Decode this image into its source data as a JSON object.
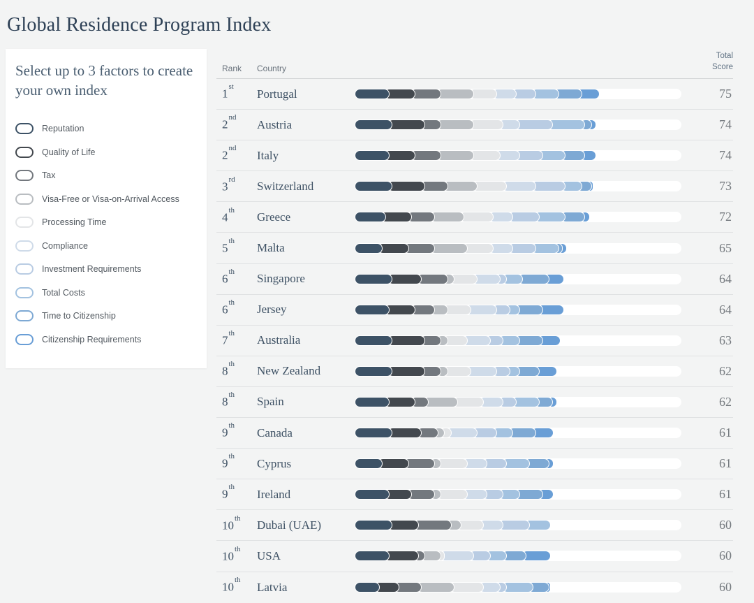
{
  "page": {
    "title": "Global Residence Program Index",
    "background_color": "#f3f4f4",
    "accent_color": "#2e4156"
  },
  "sidebar": {
    "heading": "Select up to 3 factors to create your own index",
    "factors": [
      {
        "label": "Reputation",
        "color": "#3d5266"
      },
      {
        "label": "Quality of Life",
        "color": "#43484e"
      },
      {
        "label": "Tax",
        "color": "#73787e"
      },
      {
        "label": "Visa-Free or Visa-on-Arrival Access",
        "color": "#b9bdc1"
      },
      {
        "label": "Processing Time",
        "color": "#e3e5e7"
      },
      {
        "label": "Compliance",
        "color": "#cfdbe9"
      },
      {
        "label": "Investment Requirements",
        "color": "#b9cce3"
      },
      {
        "label": "Total Costs",
        "color": "#a3c2e0"
      },
      {
        "label": "Time to Citizenship",
        "color": "#7ea9d4"
      },
      {
        "label": "Citizenship Requirements",
        "color": "#699ed6"
      }
    ]
  },
  "table": {
    "headers": {
      "rank": "Rank",
      "country": "Country",
      "score_line1": "Total",
      "score_line2": "Score"
    },
    "ranks": [
      {
        "num": "1",
        "suffix": "st"
      },
      {
        "num": "2",
        "suffix": "nd"
      },
      {
        "num": "2",
        "suffix": "nd"
      },
      {
        "num": "3",
        "suffix": "rd"
      },
      {
        "num": "4",
        "suffix": "th"
      },
      {
        "num": "5",
        "suffix": "th"
      },
      {
        "num": "6",
        "suffix": "th"
      },
      {
        "num": "6",
        "suffix": "th"
      },
      {
        "num": "7",
        "suffix": "th"
      },
      {
        "num": "8",
        "suffix": "th"
      },
      {
        "num": "8",
        "suffix": "th"
      },
      {
        "num": "9",
        "suffix": "th"
      },
      {
        "num": "9",
        "suffix": "th"
      },
      {
        "num": "9",
        "suffix": "th"
      },
      {
        "num": "10",
        "suffix": "th"
      },
      {
        "num": "10",
        "suffix": "th"
      },
      {
        "num": "10",
        "suffix": "th"
      }
    ]
  },
  "chart_data": {
    "type": "bar",
    "variant": "horizontal-stacked",
    "title": "Global Residence Program Index",
    "xlim": [
      0,
      100
    ],
    "track_color": "#ffffff",
    "stack_categories": [
      "Reputation",
      "Quality of Life",
      "Tax",
      "Visa-Free or Visa-on-Arrival Access",
      "Processing Time",
      "Compliance",
      "Investment Requirements",
      "Total Costs",
      "Time to Citizenship",
      "Citizenship Requirements"
    ],
    "stack_colors": [
      "#3d5266",
      "#43484e",
      "#73787e",
      "#b9bdc1",
      "#e3e5e7",
      "#cfdbe9",
      "#b9cce3",
      "#a3c2e0",
      "#7ea9d4",
      "#699ed6"
    ],
    "bars": [
      {
        "country": "Portugal",
        "total": 75,
        "values": [
          9,
          8,
          8,
          10,
          7,
          6,
          6,
          7,
          7,
          7
        ]
      },
      {
        "country": "Austria",
        "total": 74,
        "values": [
          10,
          10,
          5,
          10,
          9,
          5,
          10,
          10,
          2,
          3
        ]
      },
      {
        "country": "Italy",
        "total": 74,
        "values": [
          9,
          8,
          8,
          10,
          8,
          6,
          7,
          7,
          6,
          5
        ]
      },
      {
        "country": "Switzerland",
        "total": 73,
        "values": [
          10,
          10,
          7,
          9,
          9,
          9,
          9,
          5,
          3,
          2
        ]
      },
      {
        "country": "Greece",
        "total": 72,
        "values": [
          8,
          8,
          7,
          9,
          9,
          6,
          8,
          8,
          6,
          3
        ]
      },
      {
        "country": "Malta",
        "total": 65,
        "values": [
          7,
          8,
          8,
          10,
          8,
          6,
          7,
          7,
          1,
          3
        ]
      },
      {
        "country": "Singapore",
        "total": 64,
        "values": [
          10,
          9,
          8,
          2,
          7,
          7,
          2,
          5,
          8,
          6
        ]
      },
      {
        "country": "Jersey",
        "total": 64,
        "values": [
          9,
          8,
          6,
          4,
          7,
          8,
          4,
          3,
          7,
          8
        ]
      },
      {
        "country": "Australia",
        "total": 63,
        "values": [
          10,
          10,
          5,
          2,
          6,
          7,
          4,
          5,
          7,
          7
        ]
      },
      {
        "country": "New Zealand",
        "total": 62,
        "values": [
          10,
          10,
          5,
          2,
          7,
          8,
          4,
          3,
          6,
          7
        ]
      },
      {
        "country": "Spain",
        "total": 62,
        "values": [
          9,
          8,
          4,
          9,
          8,
          6,
          4,
          7,
          4,
          3
        ]
      },
      {
        "country": "Canada",
        "total": 61,
        "values": [
          10,
          9,
          5,
          2,
          2,
          8,
          6,
          5,
          7,
          7
        ]
      },
      {
        "country": "Cyprus",
        "total": 61,
        "values": [
          7,
          8,
          8,
          2,
          8,
          6,
          6,
          7,
          6,
          3
        ]
      },
      {
        "country": "Ireland",
        "total": 61,
        "values": [
          9,
          7,
          7,
          2,
          8,
          6,
          5,
          5,
          7,
          5
        ]
      },
      {
        "country": "Dubai (UAE)",
        "total": 60,
        "values": [
          10,
          8,
          10,
          3,
          7,
          6,
          8,
          8,
          0,
          0
        ]
      },
      {
        "country": "USA",
        "total": 60,
        "values": [
          9,
          9,
          2,
          5,
          1,
          9,
          5,
          5,
          6,
          9
        ]
      },
      {
        "country": "Latvia",
        "total": 60,
        "values": [
          6,
          6,
          7,
          10,
          9,
          5,
          2,
          8,
          5,
          2
        ]
      }
    ]
  }
}
